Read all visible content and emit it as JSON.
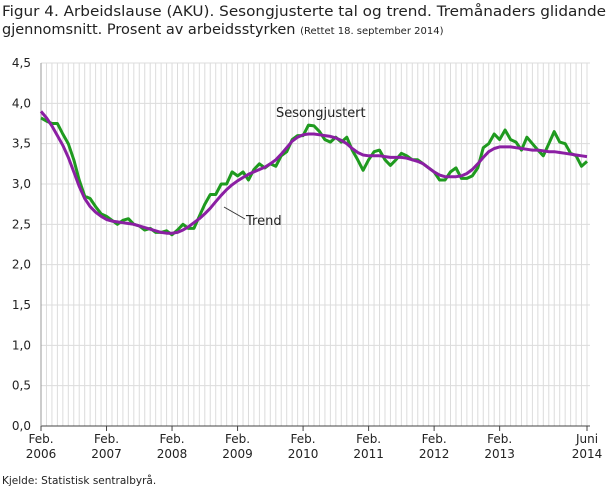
{
  "chart_data": {
    "type": "line",
    "title": [
      "Figur 4. Arbeidslause (AKU). Sesongjusterte tal og trend. Tremånaders glidande",
      "gjennomsnitt. Prosent av arbeidsstyrken"
    ],
    "subtitle": "(Rettet 18. september 2014)",
    "source": "Kjelde: Statistisk sentralbyrå.",
    "categories": [
      "Feb. 2006",
      null,
      null,
      null,
      null,
      null,
      null,
      null,
      null,
      null,
      null,
      null,
      "Feb. 2007",
      null,
      null,
      null,
      null,
      null,
      null,
      null,
      null,
      null,
      null,
      null,
      "Feb. 2008",
      null,
      null,
      null,
      null,
      null,
      null,
      null,
      null,
      null,
      null,
      null,
      "Feb. 2009",
      null,
      null,
      null,
      null,
      null,
      null,
      null,
      null,
      null,
      null,
      null,
      "Feb. 2010",
      null,
      null,
      null,
      null,
      null,
      null,
      null,
      null,
      null,
      null,
      null,
      "Feb. 2011",
      null,
      null,
      null,
      null,
      null,
      null,
      null,
      null,
      null,
      null,
      null,
      "Feb. 2012",
      null,
      null,
      null,
      null,
      null,
      null,
      null,
      null,
      null,
      null,
      null,
      "Feb. 2013",
      null,
      null,
      null,
      null,
      null,
      null,
      null,
      null,
      null,
      null,
      null,
      null,
      null,
      null,
      null,
      "Juni 2014"
    ],
    "series": [
      {
        "name": "Sesongjustert",
        "color": "#1f9a1f",
        "values": [
          3.82,
          3.78,
          3.75,
          3.75,
          3.62,
          3.5,
          3.3,
          3.05,
          2.85,
          2.82,
          2.72,
          2.63,
          2.6,
          2.55,
          2.5,
          2.55,
          2.57,
          2.5,
          2.48,
          2.43,
          2.45,
          2.4,
          2.4,
          2.42,
          2.37,
          2.43,
          2.5,
          2.45,
          2.45,
          2.6,
          2.75,
          2.87,
          2.87,
          3.0,
          3.0,
          3.15,
          3.1,
          3.15,
          3.05,
          3.18,
          3.25,
          3.2,
          3.25,
          3.22,
          3.35,
          3.4,
          3.55,
          3.6,
          3.6,
          3.73,
          3.72,
          3.65,
          3.55,
          3.52,
          3.58,
          3.52,
          3.58,
          3.42,
          3.3,
          3.17,
          3.3,
          3.4,
          3.42,
          3.3,
          3.23,
          3.3,
          3.38,
          3.35,
          3.3,
          3.3,
          3.25,
          3.2,
          3.15,
          3.05,
          3.05,
          3.15,
          3.2,
          3.07,
          3.07,
          3.1,
          3.2,
          3.45,
          3.5,
          3.62,
          3.55,
          3.67,
          3.55,
          3.52,
          3.42,
          3.58,
          3.5,
          3.42,
          3.35,
          3.5,
          3.65,
          3.52,
          3.5,
          3.38,
          3.35,
          3.22,
          3.28
        ]
      },
      {
        "name": "Trend",
        "color": "#8b1fa3",
        "values": [
          3.9,
          3.82,
          3.72,
          3.6,
          3.48,
          3.33,
          3.15,
          2.97,
          2.82,
          2.72,
          2.65,
          2.6,
          2.56,
          2.54,
          2.53,
          2.52,
          2.51,
          2.5,
          2.48,
          2.46,
          2.44,
          2.42,
          2.4,
          2.39,
          2.39,
          2.4,
          2.43,
          2.47,
          2.52,
          2.57,
          2.63,
          2.7,
          2.78,
          2.86,
          2.93,
          2.99,
          3.04,
          3.08,
          3.12,
          3.15,
          3.18,
          3.21,
          3.25,
          3.3,
          3.37,
          3.45,
          3.53,
          3.58,
          3.61,
          3.62,
          3.62,
          3.61,
          3.6,
          3.59,
          3.57,
          3.54,
          3.5,
          3.44,
          3.39,
          3.36,
          3.35,
          3.35,
          3.35,
          3.34,
          3.33,
          3.33,
          3.33,
          3.32,
          3.3,
          3.28,
          3.25,
          3.2,
          3.15,
          3.11,
          3.09,
          3.09,
          3.09,
          3.1,
          3.13,
          3.18,
          3.25,
          3.33,
          3.4,
          3.44,
          3.46,
          3.46,
          3.46,
          3.45,
          3.44,
          3.43,
          3.42,
          3.42,
          3.41,
          3.4,
          3.4,
          3.39,
          3.38,
          3.37,
          3.36,
          3.35,
          3.34
        ]
      }
    ],
    "ylim": [
      0,
      4.5
    ],
    "yticks": [
      {
        "value": 0,
        "label": "0,0"
      },
      {
        "value": 0.5,
        "label": "0,5"
      },
      {
        "value": 1,
        "label": "1,0"
      },
      {
        "value": 1.5,
        "label": "1,5"
      },
      {
        "value": 2,
        "label": "2,0"
      },
      {
        "value": 2.5,
        "label": "2,5"
      },
      {
        "value": 3,
        "label": "3,0"
      },
      {
        "value": 3.5,
        "label": "3,5"
      },
      {
        "value": 4,
        "label": "4,0"
      },
      {
        "value": 4.5,
        "label": "4,5"
      }
    ],
    "grid": true
  }
}
